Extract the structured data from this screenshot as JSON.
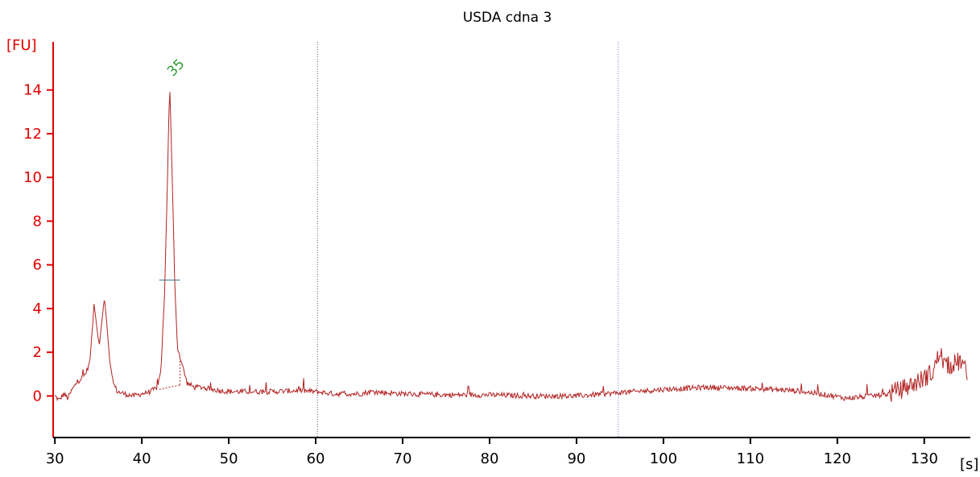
{
  "colors": {
    "trace": "#b22222",
    "y_axis": "#e00000",
    "x_axis": "#000000",
    "peak_label": "#2e9a2e",
    "marker_line_1": "#555577",
    "marker_line_2": "#7777cc",
    "halfheight_marker": "#3a6f8f"
  },
  "chart_data": {
    "type": "line",
    "title": "USDA cdna 3",
    "xlabel": "[s]",
    "ylabel": "[FU]",
    "xlim": [
      29.8,
      135.3
    ],
    "ylim": [
      -1.9,
      16.2
    ],
    "xticks": [
      30,
      40,
      50,
      60,
      70,
      80,
      90,
      100,
      110,
      120,
      130
    ],
    "yticks": [
      0,
      2,
      4,
      6,
      8,
      10,
      12,
      14
    ],
    "grid": false,
    "series": [
      {
        "name": "",
        "points": [
          [
            30,
            0.0
          ],
          [
            30.5,
            -0.2
          ],
          [
            31,
            0.1
          ],
          [
            31.5,
            -0.1
          ],
          [
            32,
            0.3
          ],
          [
            32.5,
            0.6
          ],
          [
            33,
            0.8
          ],
          [
            33.5,
            1.0
          ],
          [
            34,
            1.5
          ],
          [
            34.3,
            3.0
          ],
          [
            34.5,
            4.2
          ],
          [
            34.8,
            3.2
          ],
          [
            35.1,
            2.3
          ],
          [
            35.4,
            3.4
          ],
          [
            35.7,
            4.5
          ],
          [
            36.0,
            3.2
          ],
          [
            36.3,
            1.6
          ],
          [
            36.7,
            0.6
          ],
          [
            37.2,
            0.2
          ],
          [
            38,
            0.1
          ],
          [
            39,
            0.0
          ],
          [
            40,
            0.1
          ],
          [
            41,
            0.2
          ],
          [
            41.8,
            0.4
          ],
          [
            42.2,
            1.2
          ],
          [
            42.6,
            4.5
          ],
          [
            42.9,
            9.0
          ],
          [
            43.2,
            14.3
          ],
          [
            43.5,
            10.0
          ],
          [
            43.8,
            5.0
          ],
          [
            44.1,
            2.2
          ],
          [
            44.6,
            1.5
          ],
          [
            45.2,
            0.6
          ],
          [
            46,
            0.4
          ],
          [
            47,
            0.4
          ],
          [
            48,
            0.3
          ],
          [
            50,
            0.2
          ],
          [
            52,
            0.2
          ],
          [
            55,
            0.2
          ],
          [
            58,
            0.25
          ],
          [
            60,
            0.2
          ],
          [
            62,
            0.1
          ],
          [
            65,
            0.1
          ],
          [
            66.5,
            0.2
          ],
          [
            68,
            0.15
          ],
          [
            70,
            0.1
          ],
          [
            75,
            0.05
          ],
          [
            80,
            0.05
          ],
          [
            85,
            0.0
          ],
          [
            90,
            0.0
          ],
          [
            95,
            0.15
          ],
          [
            100,
            0.3
          ],
          [
            105,
            0.4
          ],
          [
            110,
            0.35
          ],
          [
            115,
            0.25
          ],
          [
            118,
            0.1
          ],
          [
            121,
            -0.1
          ],
          [
            124,
            0.0
          ],
          [
            126,
            0.1
          ],
          [
            128,
            0.4
          ],
          [
            129.5,
            0.7
          ],
          [
            131,
            1.1
          ],
          [
            131.8,
            2.0
          ],
          [
            132.5,
            1.3
          ],
          [
            133.5,
            1.5
          ],
          [
            134.3,
            1.6
          ],
          [
            135,
            0.8
          ]
        ]
      }
    ],
    "vertical_markers": [
      60.2,
      94.8
    ],
    "peaks": [
      {
        "label": "35",
        "x": 43.2,
        "y": 14.3,
        "half_height": 5.3,
        "half_width": [
          42.0,
          44.4
        ],
        "baseline": {
          "x1": 42.0,
          "y1": 0.3,
          "x2": 44.4,
          "y2": 0.5
        }
      }
    ]
  }
}
